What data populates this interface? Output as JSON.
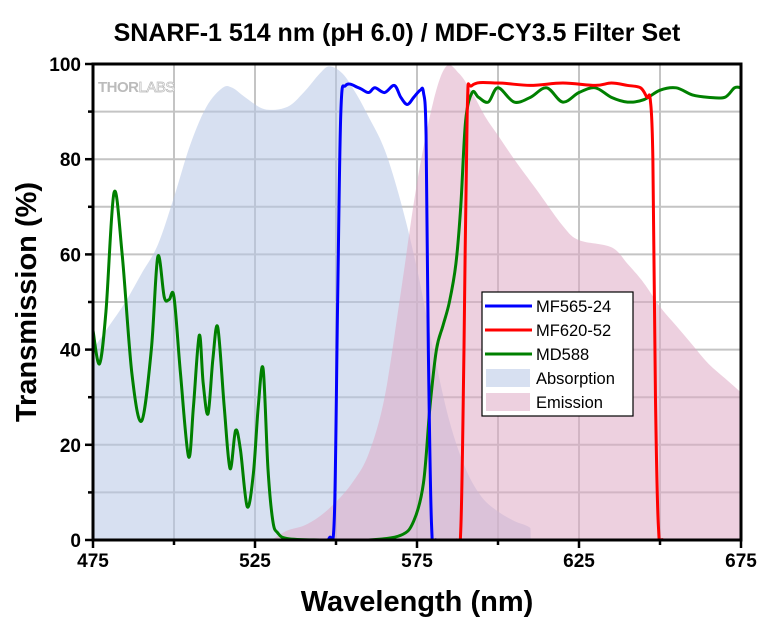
{
  "chart_data": {
    "type": "line",
    "title": "SNARF-1 514 nm (pH 6.0) / MDF-CY3.5 Filter Set",
    "xlabel": "Wavelength (nm)",
    "ylabel": "Transmission (%)",
    "xlim": [
      475,
      675
    ],
    "ylim": [
      0,
      100
    ],
    "x_ticks": [
      475,
      525,
      575,
      625,
      675
    ],
    "y_ticks": [
      0,
      20,
      40,
      60,
      80,
      100
    ],
    "grid": true,
    "legend_position": "center-right",
    "watermark": "THORLABS",
    "series": [
      {
        "name": "MF565-24",
        "kind": "line",
        "color": "#0000ff",
        "x": [
          475,
          545,
          548,
          549.5,
          550.5,
          551.5,
          553,
          557,
          560,
          562,
          565,
          568,
          570,
          572,
          574,
          576,
          577,
          577.8,
          578.5,
          579.5,
          581,
          675
        ],
        "y": [
          0,
          0,
          0.5,
          5,
          50,
          90,
          95.5,
          95,
          94,
          95,
          94,
          95.5,
          93,
          91.5,
          93,
          94.5,
          94,
          85,
          40,
          3,
          0,
          0
        ]
      },
      {
        "name": "MF620-52",
        "kind": "line",
        "color": "#ff0000",
        "x": [
          475,
          587,
          588.5,
          589.5,
          590.5,
          592,
          600,
          610,
          620,
          630,
          635,
          640,
          644,
          646,
          647,
          647.8,
          648.6,
          649.5,
          651,
          675
        ],
        "y": [
          0,
          0,
          2,
          40,
          90,
          95.5,
          96,
          95.5,
          96,
          95.5,
          96,
          95.5,
          95,
          93,
          92.5,
          80,
          30,
          3,
          0,
          0
        ]
      },
      {
        "name": "MD588",
        "kind": "line",
        "color": "#008000",
        "x": [
          475,
          477,
          479,
          481.5,
          484,
          487,
          490,
          493,
          495,
          497,
          498.5,
          500,
          502,
          504.5,
          506,
          507.8,
          509,
          510.5,
          512,
          513.5,
          515.5,
          517.3,
          519,
          520.5,
          522.6,
          524.5,
          526,
          527.5,
          529,
          530.5,
          532,
          535,
          545,
          560,
          570,
          574,
          577,
          579,
          581,
          583,
          585,
          587,
          588.5,
          590,
          592,
          594,
          597,
          600,
          605,
          610,
          615,
          620,
          625,
          630,
          635,
          640,
          645,
          650,
          655,
          660,
          665,
          670,
          673,
          675
        ],
        "y": [
          44,
          37,
          48,
          73,
          60,
          35,
          25,
          40,
          59.5,
          51,
          50.5,
          51,
          35,
          17.5,
          28,
          43,
          33,
          26.5,
          38,
          44.7,
          28,
          15,
          23,
          19,
          7,
          14,
          28,
          36,
          15,
          4,
          1.5,
          0.3,
          0,
          0,
          1,
          4,
          12,
          28,
          40,
          45,
          50,
          58,
          70,
          88,
          94,
          93,
          92,
          95,
          92,
          93,
          95,
          92,
          94,
          95,
          93,
          92,
          92.5,
          94.5,
          95,
          93.5,
          93,
          93,
          95,
          95
        ]
      },
      {
        "name": "Absorption",
        "kind": "area",
        "color": "#b7c6e6",
        "x": [
          475,
          480,
          485,
          490,
          495,
          500,
          505,
          510,
          515,
          518,
          522,
          528,
          535,
          540,
          545,
          548,
          552,
          556,
          560,
          565,
          570,
          575,
          580,
          585,
          590,
          595,
          600,
          605,
          610,
          610.1
        ],
        "y": [
          40,
          45,
          50,
          56,
          62,
          72,
          83,
          91,
          95,
          95,
          93,
          90.5,
          91,
          94,
          98,
          99.5,
          98,
          94,
          89,
          82,
          71,
          57,
          40,
          25,
          15,
          9,
          6,
          4,
          2.5,
          0
        ]
      },
      {
        "name": "Emission",
        "kind": "area",
        "color": "#dfaac4",
        "x": [
          530,
          535,
          540,
          545,
          550,
          555,
          560,
          565,
          570,
          575,
          580,
          584,
          588,
          592,
          596,
          600,
          605,
          612,
          620,
          625,
          635,
          640,
          645,
          650,
          655,
          660,
          665,
          670,
          675
        ],
        "y": [
          0,
          2,
          3,
          5,
          8,
          12,
          18,
          30,
          52,
          75,
          92,
          99.5,
          98,
          94,
          89,
          85,
          80,
          73.5,
          66,
          63,
          61.5,
          58,
          54,
          49,
          45,
          41,
          37,
          34,
          31
        ]
      }
    ]
  }
}
